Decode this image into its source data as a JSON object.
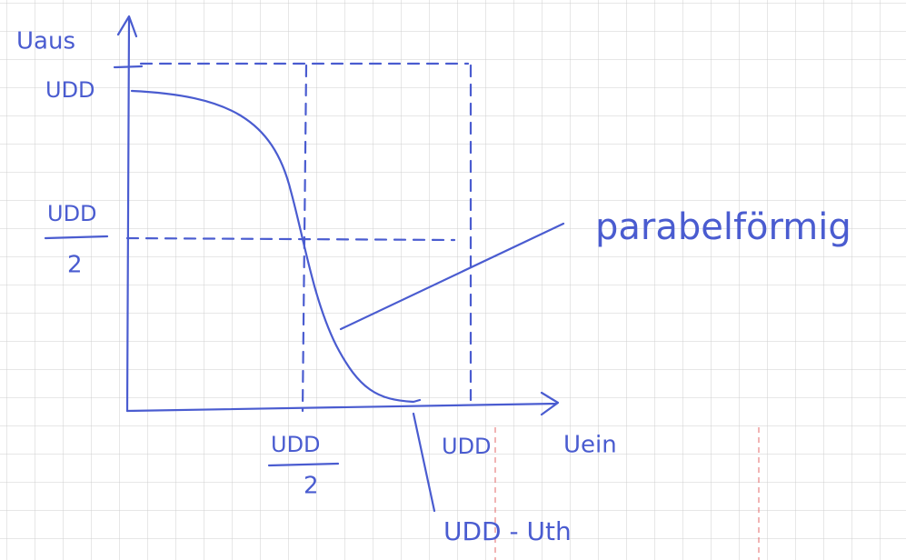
{
  "axes": {
    "y_label": "Uaus",
    "x_label": "Uein"
  },
  "y_marks": {
    "top": "UDD",
    "half": {
      "numerator": "UDD",
      "denominator": "2"
    }
  },
  "x_marks": {
    "half": {
      "numerator": "UDD",
      "denominator": "2"
    },
    "full": "UDD",
    "threshold": "UDD - Uth"
  },
  "annotation": "parabelförmig"
}
